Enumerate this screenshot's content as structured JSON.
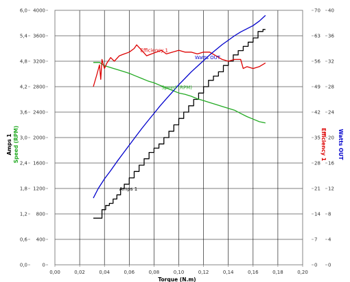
{
  "chart_data": {
    "type": "line",
    "title": "",
    "xlabel": "Torque (N.m)",
    "xlim": [
      0,
      0.2
    ],
    "x_ticks": [
      "0,00",
      "0,02",
      "0,04",
      "0,06",
      "0,08",
      "0,10",
      "0,12",
      "0,14",
      "0,16",
      "0,18",
      "0,20"
    ],
    "x_tick_values": [
      0,
      0.02,
      0.04,
      0.06,
      0.08,
      0.1,
      0.12,
      0.14,
      0.16,
      0.18,
      0.2
    ],
    "grid": true,
    "axes": [
      {
        "id": "amps",
        "label": "Amps 1",
        "side": "left",
        "color": "#000000",
        "range": [
          0,
          6
        ],
        "ticks": [
          "0,0",
          "0,6",
          "1,2",
          "1,8",
          "2,4",
          "3,0",
          "3,6",
          "4,2",
          "4,8",
          "5,4",
          "6,0"
        ]
      },
      {
        "id": "speed",
        "label": "Speed (RPM)",
        "side": "left",
        "color": "#22aa22",
        "range": [
          0,
          4000
        ],
        "ticks": [
          "0",
          "400",
          "800",
          "1200",
          "1600",
          "2000",
          "2400",
          "2800",
          "3200",
          "3600",
          "4000"
        ]
      },
      {
        "id": "eff",
        "label": "Efficiency 1",
        "side": "right",
        "color": "#dd0000",
        "range": [
          0,
          70
        ],
        "ticks": [
          "0",
          "7",
          "14",
          "21",
          "28",
          "35",
          "42",
          "49",
          "56",
          "63",
          "70"
        ]
      },
      {
        "id": "watts",
        "label": "Watts OUT",
        "side": "right",
        "color": "#0000cc",
        "range": [
          0,
          40
        ],
        "ticks": [
          "0",
          "4",
          "8",
          "12",
          "16",
          "20",
          "24",
          "28",
          "32",
          "36",
          "40"
        ]
      }
    ],
    "series": [
      {
        "name": "Amps 1",
        "axis": "amps",
        "color": "#000000",
        "label_at": [
          0.052,
          1.75
        ],
        "x": [
          0.031,
          0.036,
          0.038,
          0.041,
          0.044,
          0.047,
          0.05,
          0.053,
          0.056,
          0.06,
          0.064,
          0.068,
          0.072,
          0.076,
          0.08,
          0.084,
          0.088,
          0.092,
          0.096,
          0.1,
          0.104,
          0.108,
          0.112,
          0.116,
          0.12,
          0.124,
          0.128,
          0.132,
          0.136,
          0.14,
          0.144,
          0.148,
          0.152,
          0.156,
          0.16,
          0.164,
          0.168,
          0.17
        ],
        "y": [
          1.1,
          1.1,
          1.3,
          1.4,
          1.45,
          1.55,
          1.65,
          1.8,
          1.9,
          2.05,
          2.2,
          2.35,
          2.5,
          2.65,
          2.75,
          2.85,
          3.0,
          3.15,
          3.3,
          3.45,
          3.6,
          3.75,
          3.9,
          4.05,
          4.2,
          4.35,
          4.45,
          4.55,
          4.7,
          4.8,
          4.95,
          5.05,
          5.15,
          5.25,
          5.35,
          5.5,
          5.55,
          5.55
        ]
      },
      {
        "name": "Speed (RPM)",
        "axis": "speed",
        "color": "#22aa22",
        "label_at": [
          0.086,
          2760
        ],
        "x": [
          0.031,
          0.036,
          0.04,
          0.045,
          0.05,
          0.055,
          0.06,
          0.065,
          0.07,
          0.075,
          0.08,
          0.085,
          0.09,
          0.095,
          0.1,
          0.105,
          0.11,
          0.115,
          0.12,
          0.125,
          0.13,
          0.135,
          0.14,
          0.145,
          0.15,
          0.155,
          0.16,
          0.165,
          0.17
        ],
        "y": [
          3180,
          3180,
          3130,
          3100,
          3070,
          3040,
          3010,
          2970,
          2930,
          2890,
          2860,
          2820,
          2780,
          2740,
          2700,
          2680,
          2650,
          2610,
          2580,
          2550,
          2520,
          2490,
          2460,
          2430,
          2380,
          2330,
          2290,
          2250,
          2230
        ]
      },
      {
        "name": "Efficiency 1",
        "axis": "eff",
        "color": "#dd0000",
        "label_at": [
          0.069,
          58.6
        ],
        "x": [
          0.031,
          0.034,
          0.036,
          0.037,
          0.038,
          0.04,
          0.042,
          0.045,
          0.048,
          0.052,
          0.056,
          0.06,
          0.064,
          0.066,
          0.07,
          0.074,
          0.078,
          0.082,
          0.086,
          0.09,
          0.095,
          0.1,
          0.105,
          0.11,
          0.115,
          0.12,
          0.125,
          0.13,
          0.135,
          0.14,
          0.145,
          0.15,
          0.152,
          0.155,
          0.16,
          0.165,
          0.17
        ],
        "y": [
          49.0,
          52.5,
          55.0,
          51.0,
          56.5,
          54.0,
          55.5,
          57.0,
          56.0,
          57.5,
          58.0,
          58.5,
          59.5,
          60.5,
          59.0,
          57.5,
          58.0,
          58.5,
          59.0,
          58.0,
          58.5,
          59.0,
          58.5,
          58.5,
          58.0,
          58.5,
          58.5,
          57.5,
          56.5,
          56.0,
          56.5,
          56.5,
          54.0,
          54.5,
          54.0,
          54.5,
          55.5
        ]
      },
      {
        "name": "Watts OUT",
        "axis": "watts",
        "color": "#0000cc",
        "label_at": [
          0.113,
          32.3
        ],
        "x": [
          0.031,
          0.035,
          0.04,
          0.045,
          0.05,
          0.055,
          0.06,
          0.065,
          0.07,
          0.075,
          0.08,
          0.085,
          0.09,
          0.095,
          0.1,
          0.105,
          0.11,
          0.115,
          0.12,
          0.125,
          0.13,
          0.135,
          0.14,
          0.145,
          0.15,
          0.155,
          0.16,
          0.165,
          0.17
        ],
        "y": [
          10.5,
          12.0,
          13.5,
          14.8,
          16.2,
          17.5,
          18.8,
          20.1,
          21.4,
          22.6,
          23.8,
          25.0,
          26.1,
          27.2,
          28.3,
          29.3,
          30.3,
          31.2,
          32.1,
          33.0,
          33.8,
          34.6,
          35.3,
          36.0,
          36.6,
          37.1,
          37.6,
          38.3,
          39.2
        ]
      }
    ]
  }
}
